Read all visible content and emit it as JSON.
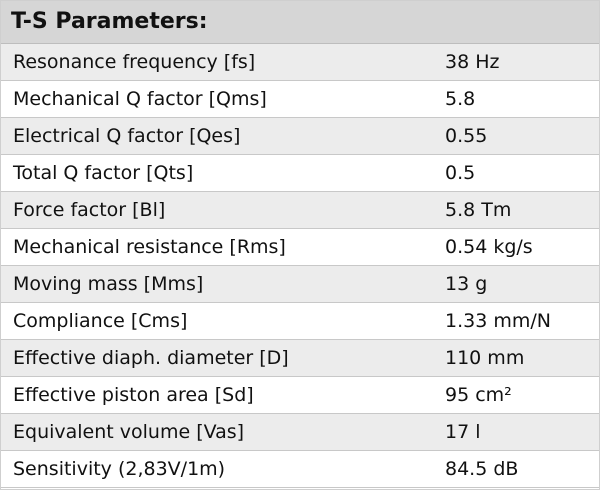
{
  "title": "T-S Parameters:",
  "rows": [
    [
      "Resonance frequency [fs]",
      "38 Hz"
    ],
    [
      "Mechanical Q factor [Qms]",
      "5.8"
    ],
    [
      "Electrical Q factor [Qes]",
      "0.55"
    ],
    [
      "Total Q factor [Qts]",
      "0.5"
    ],
    [
      "Force factor [Bl]",
      "5.8 Tm"
    ],
    [
      "Mechanical resistance [Rms]",
      "0.54 kg/s"
    ],
    [
      "Moving mass [Mms]",
      "13 g"
    ],
    [
      "Compliance [Cms]",
      "1.33 mm/N"
    ],
    [
      "Effective diaph. diameter [D]",
      "110 mm"
    ],
    [
      "Effective piston area [Sd]",
      "95 cm²"
    ],
    [
      "Equivalent volume [Vas]",
      "17 l"
    ],
    [
      "Sensitivity (2,83V/1m)",
      "84.5 dB"
    ]
  ]
}
